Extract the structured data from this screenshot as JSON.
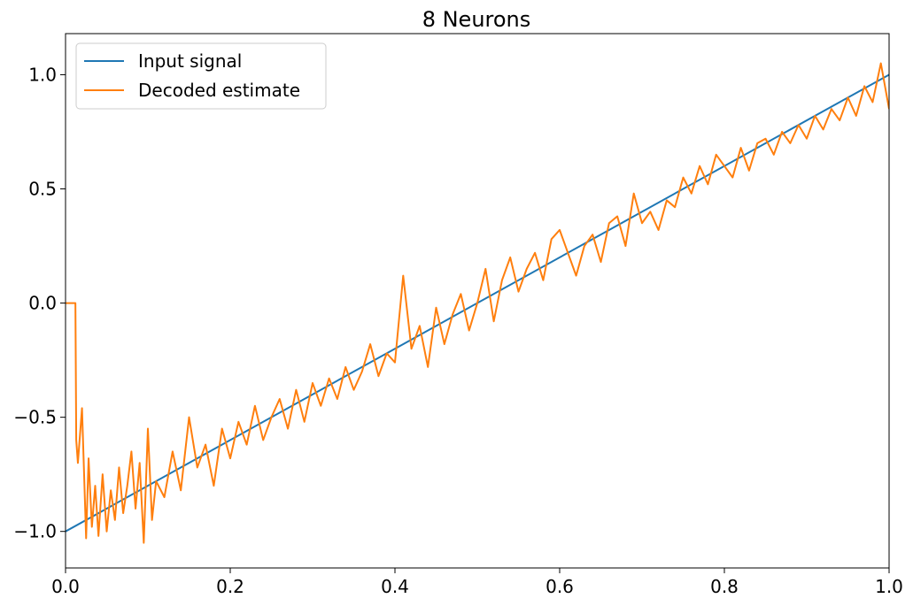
{
  "chart_data": {
    "type": "line",
    "title": "8 Neurons",
    "xlabel": "",
    "ylabel": "",
    "xlim": [
      0.0,
      1.0
    ],
    "ylim": [
      -1.16,
      1.18
    ],
    "x_ticks": [
      0.0,
      0.2,
      0.4,
      0.6,
      0.8,
      1.0
    ],
    "x_tick_labels": [
      "0.0",
      "0.2",
      "0.4",
      "0.6",
      "0.8",
      "1.0"
    ],
    "y_ticks": [
      -1.0,
      -0.5,
      0.0,
      0.5,
      1.0
    ],
    "y_tick_labels": [
      "−1.0",
      "−0.5",
      "0.0",
      "0.5",
      "1.0"
    ],
    "grid": false,
    "legend": "top-left",
    "series": [
      {
        "name": "Input signal",
        "color": "#1f77b4",
        "x": [
          0.0,
          1.0
        ],
        "y": [
          -1.0,
          1.0
        ]
      },
      {
        "name": "Decoded estimate",
        "color": "#ff7f0e",
        "x": [
          0.0,
          0.012,
          0.013,
          0.015,
          0.02,
          0.025,
          0.028,
          0.032,
          0.036,
          0.04,
          0.045,
          0.05,
          0.055,
          0.06,
          0.065,
          0.07,
          0.075,
          0.08,
          0.085,
          0.09,
          0.095,
          0.1,
          0.105,
          0.11,
          0.12,
          0.13,
          0.14,
          0.15,
          0.16,
          0.17,
          0.18,
          0.19,
          0.2,
          0.21,
          0.22,
          0.23,
          0.24,
          0.25,
          0.26,
          0.27,
          0.28,
          0.29,
          0.3,
          0.31,
          0.32,
          0.33,
          0.34,
          0.35,
          0.36,
          0.37,
          0.38,
          0.39,
          0.4,
          0.41,
          0.42,
          0.43,
          0.44,
          0.45,
          0.46,
          0.47,
          0.48,
          0.49,
          0.5,
          0.51,
          0.52,
          0.53,
          0.54,
          0.55,
          0.56,
          0.57,
          0.58,
          0.59,
          0.6,
          0.61,
          0.62,
          0.63,
          0.64,
          0.65,
          0.66,
          0.67,
          0.68,
          0.69,
          0.7,
          0.71,
          0.72,
          0.73,
          0.74,
          0.75,
          0.76,
          0.77,
          0.78,
          0.79,
          0.8,
          0.81,
          0.82,
          0.83,
          0.84,
          0.85,
          0.86,
          0.87,
          0.88,
          0.89,
          0.9,
          0.91,
          0.92,
          0.93,
          0.94,
          0.95,
          0.96,
          0.97,
          0.98,
          0.99,
          1.0
        ],
        "y": [
          0.0,
          0.0,
          -0.6,
          -0.7,
          -0.46,
          -1.03,
          -0.68,
          -0.98,
          -0.8,
          -1.02,
          -0.75,
          -1.0,
          -0.82,
          -0.95,
          -0.72,
          -0.92,
          -0.8,
          -0.65,
          -0.9,
          -0.7,
          -1.05,
          -0.55,
          -0.95,
          -0.78,
          -0.85,
          -0.65,
          -0.82,
          -0.5,
          -0.72,
          -0.62,
          -0.8,
          -0.55,
          -0.68,
          -0.52,
          -0.62,
          -0.45,
          -0.6,
          -0.5,
          -0.42,
          -0.55,
          -0.38,
          -0.52,
          -0.35,
          -0.45,
          -0.33,
          -0.42,
          -0.28,
          -0.38,
          -0.3,
          -0.18,
          -0.32,
          -0.22,
          -0.26,
          0.12,
          -0.2,
          -0.1,
          -0.28,
          -0.02,
          -0.18,
          -0.05,
          0.04,
          -0.12,
          0.0,
          0.15,
          -0.08,
          0.1,
          0.2,
          0.05,
          0.15,
          0.22,
          0.1,
          0.28,
          0.32,
          0.22,
          0.12,
          0.25,
          0.3,
          0.18,
          0.35,
          0.38,
          0.25,
          0.48,
          0.35,
          0.4,
          0.32,
          0.45,
          0.42,
          0.55,
          0.48,
          0.6,
          0.52,
          0.65,
          0.6,
          0.55,
          0.68,
          0.58,
          0.7,
          0.72,
          0.65,
          0.75,
          0.7,
          0.78,
          0.72,
          0.82,
          0.76,
          0.85,
          0.8,
          0.9,
          0.82,
          0.95,
          0.88,
          1.05,
          0.85
        ]
      }
    ]
  }
}
